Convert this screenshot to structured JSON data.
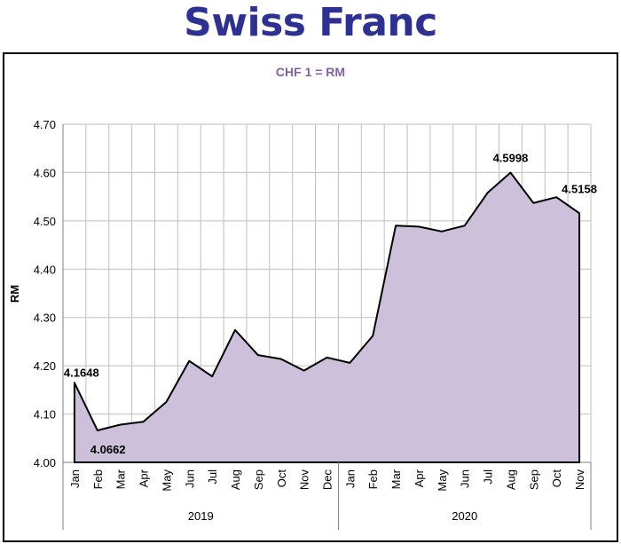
{
  "page_title": "Swiss Franc",
  "chart_data": {
    "type": "area",
    "title": "",
    "subtitle": "CHF 1 = RM",
    "xlabel": "",
    "ylabel": "RM",
    "ylim": [
      4.0,
      4.7
    ],
    "yticks": [
      "4.00",
      "4.10",
      "4.20",
      "4.30",
      "4.40",
      "4.50",
      "4.60",
      "4.70"
    ],
    "grid": true,
    "legend": "none",
    "colors": {
      "fill": "#ccc0da",
      "line": "#000000",
      "subtitle": "#8064a2",
      "title": "#2e3192"
    },
    "categories": [
      "Jan",
      "Feb",
      "Mar",
      "Apr",
      "May",
      "Jun",
      "Jul",
      "Aug",
      "Sep",
      "Oct",
      "Nov",
      "Dec",
      "Jan",
      "Feb",
      "Mar",
      "Apr",
      "May",
      "Jun",
      "Jul",
      "Aug",
      "Sep",
      "Oct",
      "Nov"
    ],
    "groups": [
      {
        "label": "2019",
        "count": 12
      },
      {
        "label": "2020",
        "count": 11
      }
    ],
    "series": [
      {
        "values": [
          4.1648,
          4.0662,
          4.078,
          4.084,
          4.125,
          4.21,
          4.178,
          4.274,
          4.222,
          4.214,
          4.19,
          4.217,
          4.206,
          4.262,
          4.49,
          4.488,
          4.478,
          4.49,
          4.558,
          4.5998,
          4.537,
          4.549,
          4.5158
        ]
      }
    ],
    "annotations": [
      {
        "index": 0,
        "text": "4.1648"
      },
      {
        "index": 1,
        "text": "4.0662"
      },
      {
        "index": 19,
        "text": "4.5998"
      },
      {
        "index": 22,
        "text": "4.5158"
      }
    ]
  }
}
